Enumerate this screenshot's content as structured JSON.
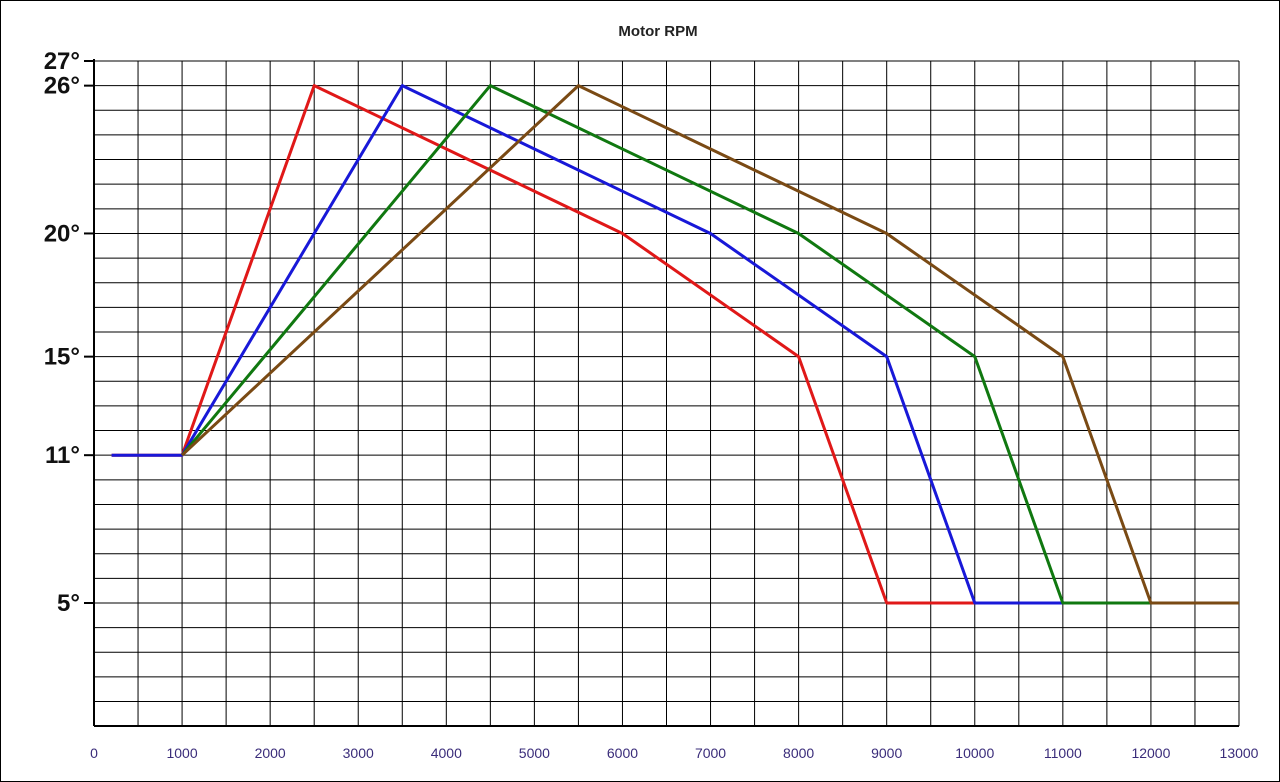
{
  "chart_data": {
    "type": "line",
    "title": "Motor RPM",
    "xlabel": "",
    "ylabel": "",
    "xlim": [
      0,
      13000
    ],
    "ylim": [
      0,
      27
    ],
    "x_ticks": [
      0,
      1000,
      2000,
      3000,
      4000,
      5000,
      6000,
      7000,
      8000,
      9000,
      10000,
      11000,
      12000,
      13000
    ],
    "y_tick_values": [
      27,
      26,
      20,
      15,
      11,
      5
    ],
    "y_tick_labels": [
      "27°",
      "26°",
      "20°",
      "15°",
      "11°",
      "5°"
    ],
    "grid": true,
    "series": [
      {
        "color": "#e01818",
        "points": [
          [
            200,
            11
          ],
          [
            1000,
            11
          ],
          [
            2500,
            26
          ],
          [
            6000,
            20
          ],
          [
            8000,
            15
          ],
          [
            9000,
            5
          ],
          [
            10000,
            5
          ]
        ]
      },
      {
        "color": "#1818d8",
        "points": [
          [
            200,
            11
          ],
          [
            1000,
            11
          ],
          [
            3500,
            26
          ],
          [
            7000,
            20
          ],
          [
            9000,
            15
          ],
          [
            10000,
            5
          ],
          [
            11000,
            5
          ]
        ]
      },
      {
        "color": "#107810",
        "points": [
          [
            1000,
            11
          ],
          [
            4500,
            26
          ],
          [
            8000,
            20
          ],
          [
            10000,
            15
          ],
          [
            11000,
            5
          ],
          [
            12000,
            5
          ]
        ]
      },
      {
        "color": "#7a4a14",
        "points": [
          [
            1000,
            11
          ],
          [
            5500,
            26
          ],
          [
            9000,
            20
          ],
          [
            11000,
            15
          ],
          [
            12000,
            5
          ],
          [
            13000,
            5
          ]
        ]
      }
    ]
  }
}
